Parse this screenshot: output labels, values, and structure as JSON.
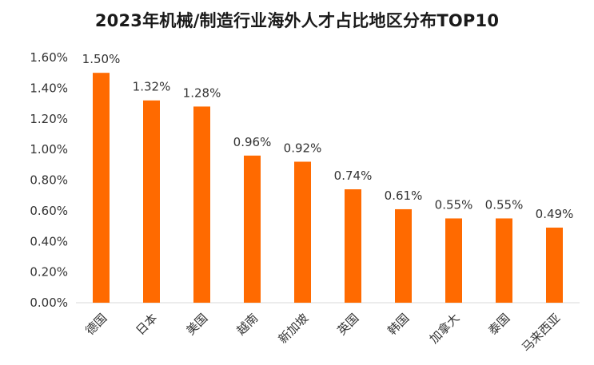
{
  "chart_data": {
    "type": "bar",
    "title": "2023年机械/制造行业海外人才占比地区分布TOP10",
    "categories": [
      "德国",
      "日本",
      "美国",
      "越南",
      "新加坡",
      "英国",
      "韩国",
      "加拿大",
      "泰国",
      "马来西亚"
    ],
    "values": [
      1.5,
      1.32,
      1.28,
      0.96,
      0.92,
      0.74,
      0.61,
      0.55,
      0.55,
      0.49
    ],
    "value_labels": [
      "1.50%",
      "1.32%",
      "1.28%",
      "0.96%",
      "0.92%",
      "0.74%",
      "0.61%",
      "0.55%",
      "0.55%",
      "0.49%"
    ],
    "y_ticks": [
      "0.00%",
      "0.20%",
      "0.40%",
      "0.60%",
      "0.80%",
      "1.00%",
      "1.20%",
      "1.40%",
      "1.60%"
    ],
    "ylim": [
      0,
      1.6
    ],
    "xlabel": "",
    "ylabel": "",
    "grid": false,
    "legend": "none",
    "bar_color": "#ff6a00"
  }
}
